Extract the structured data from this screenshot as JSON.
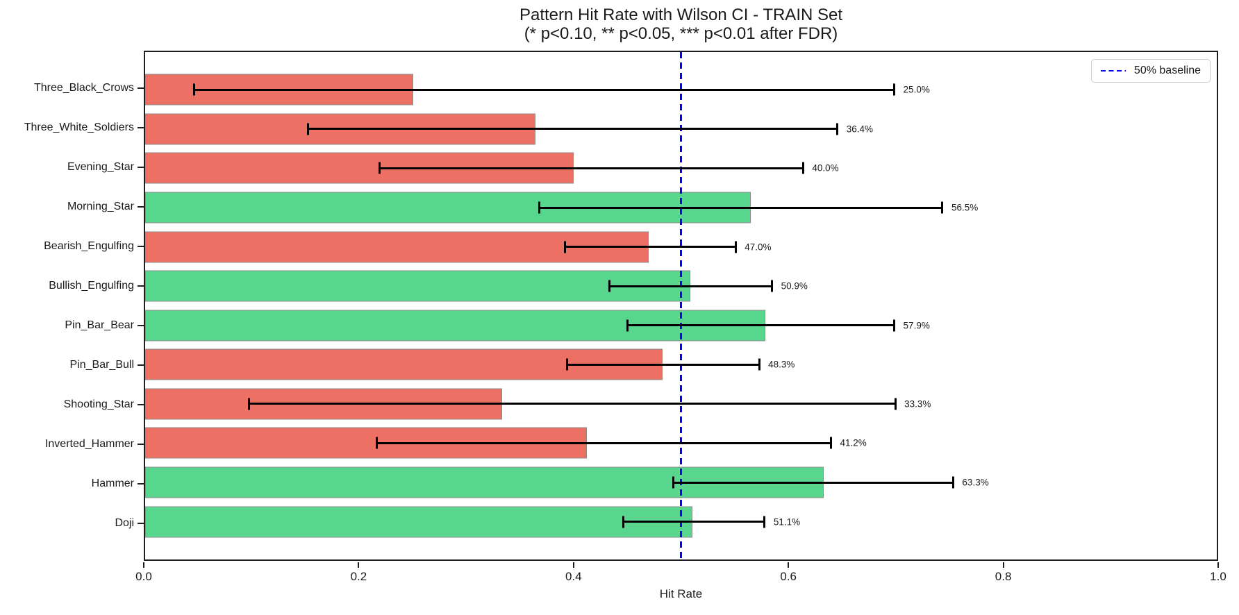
{
  "chart_data": {
    "type": "bar",
    "orientation": "horizontal",
    "title": "Pattern Hit Rate with Wilson CI - TRAIN Set",
    "subtitle": "(* p<0.10, ** p<0.05, *** p<0.01 after FDR)",
    "xlabel": "Hit Rate",
    "xlim": [
      0.0,
      1.0
    ],
    "x_ticks": [
      "0.0",
      "0.2",
      "0.4",
      "0.6",
      "0.8",
      "1.0"
    ],
    "grid": false,
    "legend": {
      "label": "50% baseline",
      "position": "upper right"
    },
    "baseline": {
      "value": 0.5,
      "color": "#0000ff",
      "style": "dashed"
    },
    "colors": {
      "positive_bar": "#58d68d",
      "negative_bar": "#ec7063",
      "bar_edge": "#8c8c8c",
      "error_bar": "#000000"
    },
    "bars": [
      {
        "category": "Three_Black_Crows",
        "value": 0.25,
        "label": "25.0%",
        "ci_low": 0.046,
        "ci_high": 0.699,
        "tone": "negative"
      },
      {
        "category": "Three_White_Soldiers",
        "value": 0.364,
        "label": "36.4%",
        "ci_low": 0.152,
        "ci_high": 0.646,
        "tone": "negative"
      },
      {
        "category": "Evening_Star",
        "value": 0.4,
        "label": "40.0%",
        "ci_low": 0.219,
        "ci_high": 0.614,
        "tone": "negative"
      },
      {
        "category": "Morning_Star",
        "value": 0.565,
        "label": "56.5%",
        "ci_low": 0.368,
        "ci_high": 0.744,
        "tone": "positive"
      },
      {
        "category": "Bearish_Engulfing",
        "value": 0.47,
        "label": "47.0%",
        "ci_low": 0.392,
        "ci_high": 0.551,
        "tone": "negative"
      },
      {
        "category": "Bullish_Engulfing",
        "value": 0.509,
        "label": "50.9%",
        "ci_low": 0.433,
        "ci_high": 0.585,
        "tone": "positive"
      },
      {
        "category": "Pin_Bar_Bear",
        "value": 0.579,
        "label": "57.9%",
        "ci_low": 0.45,
        "ci_high": 0.699,
        "tone": "positive"
      },
      {
        "category": "Pin_Bar_Bull",
        "value": 0.483,
        "label": "48.3%",
        "ci_low": 0.394,
        "ci_high": 0.573,
        "tone": "negative"
      },
      {
        "category": "Shooting_Star",
        "value": 0.333,
        "label": "33.3%",
        "ci_low": 0.097,
        "ci_high": 0.7,
        "tone": "negative"
      },
      {
        "category": "Inverted_Hammer",
        "value": 0.412,
        "label": "41.2%",
        "ci_low": 0.216,
        "ci_high": 0.64,
        "tone": "negative"
      },
      {
        "category": "Hammer",
        "value": 0.633,
        "label": "63.3%",
        "ci_low": 0.493,
        "ci_high": 0.754,
        "tone": "positive"
      },
      {
        "category": "Doji",
        "value": 0.511,
        "label": "51.1%",
        "ci_low": 0.446,
        "ci_high": 0.578,
        "tone": "positive"
      }
    ]
  }
}
